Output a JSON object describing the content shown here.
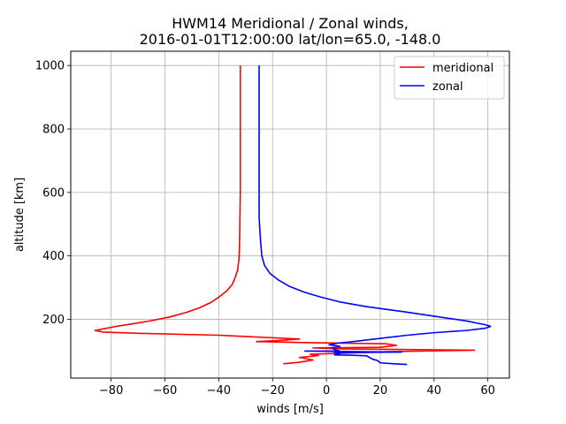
{
  "chart_data": {
    "type": "line",
    "title": "HWM14 Meridional / Zonal winds,",
    "subtitle": "2016-01-01T12:00:00 lat/lon=65.0, -148.0",
    "xlabel": "winds [m/s]",
    "ylabel": "altitude [km]",
    "xlim": [
      -95,
      68
    ],
    "ylim": [
      15,
      1045
    ],
    "xticks": [
      -80,
      -60,
      -40,
      -20,
      0,
      20,
      40,
      60
    ],
    "yticks": [
      200,
      400,
      600,
      800,
      1000
    ],
    "grid": true,
    "legend_position": "upper-right",
    "series": [
      {
        "name": "meridional",
        "color": "#ff0000",
        "points": [
          [
            -16,
            60
          ],
          [
            -10,
            65
          ],
          [
            -5,
            72
          ],
          [
            -10,
            80
          ],
          [
            -3,
            86
          ],
          [
            -6,
            90
          ],
          [
            5,
            93
          ],
          [
            15,
            96
          ],
          [
            22,
            98
          ],
          [
            55,
            103
          ],
          [
            30,
            105
          ],
          [
            5,
            107
          ],
          [
            -5,
            110
          ],
          [
            20,
            112
          ],
          [
            26,
            118
          ],
          [
            22,
            123
          ],
          [
            5,
            125
          ],
          [
            -8,
            127
          ],
          [
            -26,
            130
          ],
          [
            -18,
            133
          ],
          [
            -10,
            138
          ],
          [
            -40,
            150
          ],
          [
            -70,
            156
          ],
          [
            -83,
            160
          ],
          [
            -86,
            165
          ],
          [
            -83,
            170
          ],
          [
            -78,
            178
          ],
          [
            -72,
            186
          ],
          [
            -65,
            196
          ],
          [
            -58,
            208
          ],
          [
            -52,
            222
          ],
          [
            -47,
            237
          ],
          [
            -43,
            253
          ],
          [
            -40,
            270
          ],
          [
            -37,
            290
          ],
          [
            -35,
            310
          ],
          [
            -34,
            330
          ],
          [
            -33,
            355
          ],
          [
            -32.5,
            390
          ],
          [
            -32.3,
            430
          ],
          [
            -32.2,
            480
          ],
          [
            -32,
            600
          ],
          [
            -32,
            800
          ],
          [
            -32,
            1000
          ]
        ]
      },
      {
        "name": "zonal",
        "color": "#0000ff",
        "points": [
          [
            30,
            58
          ],
          [
            25,
            60
          ],
          [
            20,
            63
          ],
          [
            19,
            70
          ],
          [
            17,
            75
          ],
          [
            16,
            80
          ],
          [
            15,
            85
          ],
          [
            10,
            87
          ],
          [
            3,
            88
          ],
          [
            5,
            92
          ],
          [
            3,
            95
          ],
          [
            28,
            97
          ],
          [
            15,
            98
          ],
          [
            5,
            99
          ],
          [
            -8,
            100
          ],
          [
            5,
            100
          ],
          [
            3,
            105
          ],
          [
            2,
            110
          ],
          [
            5,
            115
          ],
          [
            1,
            120
          ],
          [
            4,
            125
          ],
          [
            10,
            130
          ],
          [
            20,
            140
          ],
          [
            30,
            150
          ],
          [
            40,
            158
          ],
          [
            52,
            165
          ],
          [
            59,
            172
          ],
          [
            61,
            178
          ],
          [
            59,
            183
          ],
          [
            52,
            195
          ],
          [
            40,
            210
          ],
          [
            28,
            225
          ],
          [
            15,
            240
          ],
          [
            5,
            255
          ],
          [
            -2,
            270
          ],
          [
            -8,
            285
          ],
          [
            -14,
            305
          ],
          [
            -18,
            325
          ],
          [
            -21,
            345
          ],
          [
            -23,
            370
          ],
          [
            -24,
            400
          ],
          [
            -24.5,
            450
          ],
          [
            -25,
            520
          ],
          [
            -25,
            700
          ],
          [
            -25,
            1000
          ]
        ]
      }
    ]
  }
}
